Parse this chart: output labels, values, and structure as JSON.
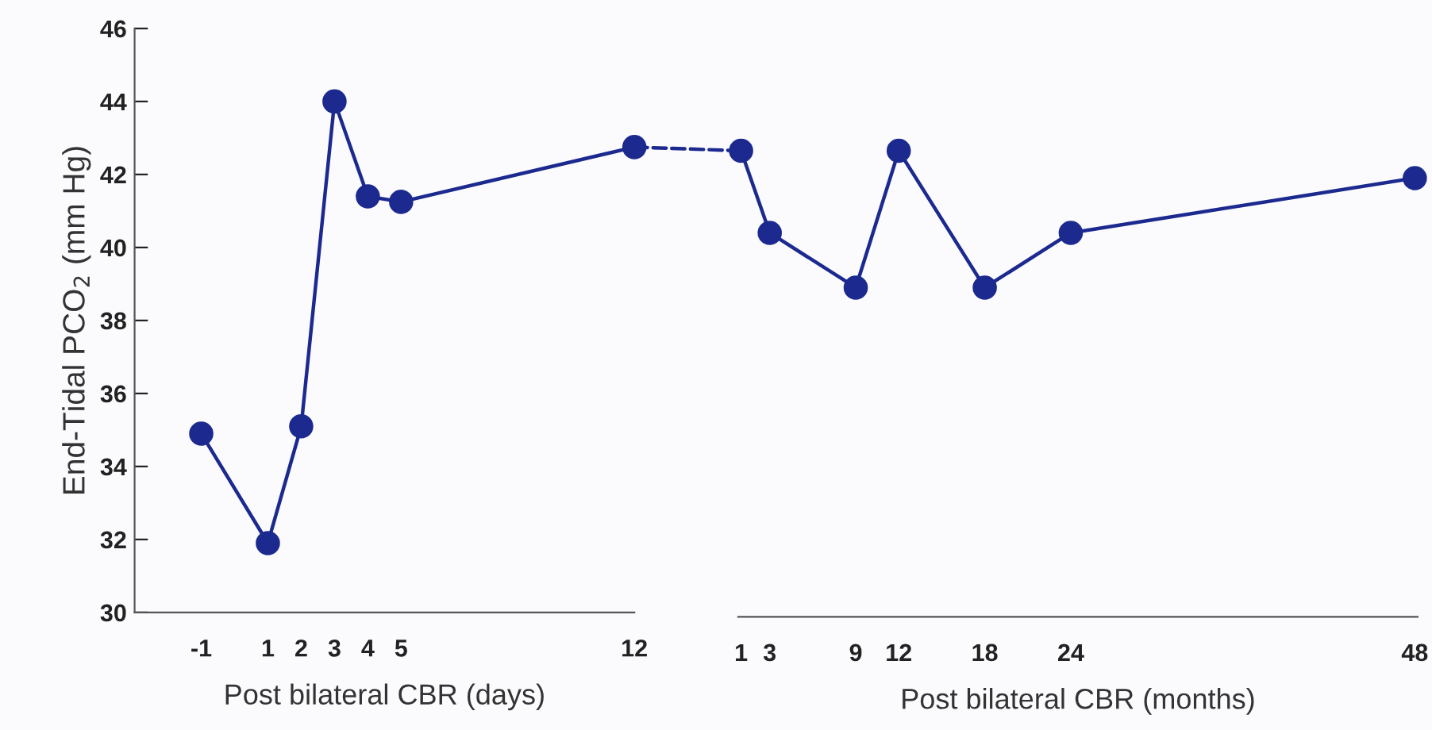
{
  "chart_data": [
    {
      "type": "line",
      "xlabel": "Post bilateral CBR (days)",
      "ylabel": "End-Tidal PCO$_{2}$ (mm Hg)",
      "xlim": [
        -3,
        12
      ],
      "xticks": [
        -1,
        1,
        2,
        3,
        4,
        5,
        12
      ],
      "ylim": [
        30,
        46
      ],
      "yticks": [
        30,
        32,
        34,
        36,
        38,
        40,
        42,
        44,
        46
      ],
      "grid": false,
      "marker": "circle",
      "line_style": "solid",
      "series": [
        {
          "color": "#1c2a8f",
          "x": [
            -1,
            1,
            2,
            3,
            4,
            5,
            12
          ],
          "values": [
            34.9,
            31.9,
            35.1,
            44.0,
            41.4,
            41.25,
            42.75
          ]
        }
      ]
    },
    {
      "type": "line",
      "xlabel": "Post bilateral CBR (months)",
      "xlim": [
        0.8,
        48.2
      ],
      "xticks": [
        1,
        3,
        9,
        12,
        18,
        24,
        48
      ],
      "ylim": [
        30,
        46
      ],
      "tick_labels": "x",
      "grid": false,
      "marker": "circle",
      "line_style": "solid",
      "series": [
        {
          "color": "#1c2a8f",
          "x": [
            1,
            3,
            9,
            12,
            18,
            24,
            48
          ],
          "values": [
            42.65,
            40.4,
            38.9,
            42.65,
            38.9,
            40.4,
            41.9
          ]
        }
      ]
    }
  ]
}
